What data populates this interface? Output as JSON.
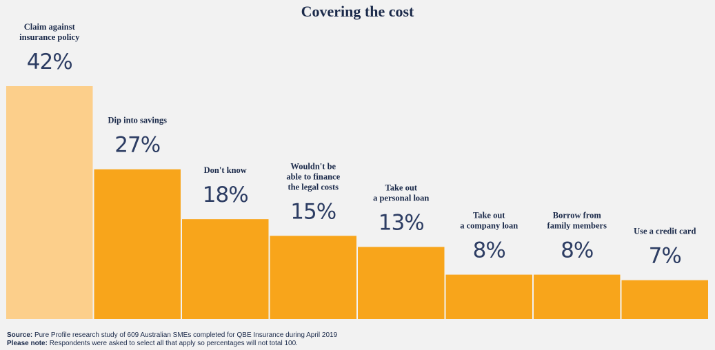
{
  "chart_data": {
    "type": "bar",
    "title": "Covering the cost",
    "categories": [
      [
        "Claim against",
        "insurance policy"
      ],
      [
        "Dip into savings"
      ],
      [
        "Don't know"
      ],
      [
        "Wouldn't be",
        "able to finance",
        "the legal costs"
      ],
      [
        "Take out",
        "a personal loan"
      ],
      [
        "Take out",
        "a company loan"
      ],
      [
        "Borrow from",
        "family members"
      ],
      [
        "Use a credit card"
      ]
    ],
    "values": [
      42,
      27,
      18,
      15,
      13,
      8,
      8,
      7
    ],
    "value_labels": [
      "42%",
      "27%",
      "18%",
      "15%",
      "13%",
      "8%",
      "8%",
      "7%"
    ],
    "colors": {
      "highlight": "#fccf8b",
      "bar": "#f8a51b"
    },
    "highlight_index": 0,
    "ylim": [
      0,
      42
    ],
    "xlabel": "",
    "ylabel": ""
  },
  "footer": {
    "source_label": "Source:",
    "source_text": " Pure Profile research study of 609 Australian SMEs completed for QBE Insurance during April 2019",
    "note_label": "Please note:",
    "note_text": " Respondents were asked to select all that apply so percentages will not total 100."
  }
}
